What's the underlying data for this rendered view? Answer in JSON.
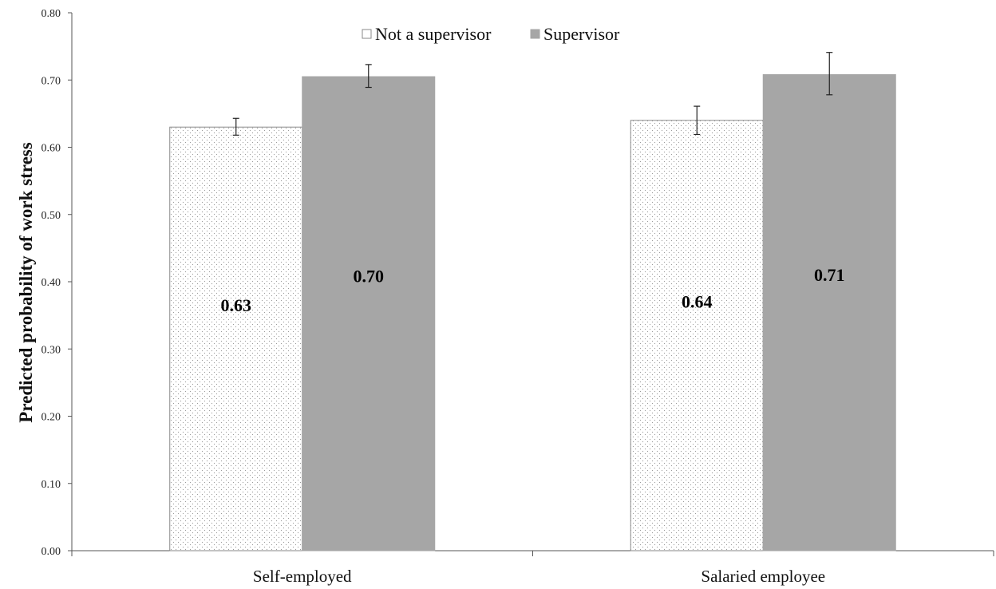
{
  "chart_data": {
    "type": "bar",
    "title": "",
    "xlabel": "",
    "ylabel": "Predicted probability of work stress",
    "categories": [
      "Self-employed",
      "Salaried employee"
    ],
    "series": [
      {
        "name": "Not a supervisor",
        "values": [
          0.63,
          0.64
        ],
        "error_low": [
          0.618,
          0.619
        ],
        "error_high": [
          0.643,
          0.661
        ],
        "data_labels": [
          "0.63",
          "0.64"
        ],
        "fill": "dotted-white",
        "color": "#ffffff"
      },
      {
        "name": "Supervisor",
        "values": [
          0.705,
          0.708
        ],
        "error_low": [
          0.689,
          0.678
        ],
        "error_high": [
          0.723,
          0.741
        ],
        "data_labels": [
          "0.70",
          "0.71"
        ],
        "fill": "solid",
        "color": "#a6a6a6"
      }
    ],
    "ylim": [
      0,
      0.8
    ],
    "yticks": [
      "0.00",
      "0.10",
      "0.20",
      "0.30",
      "0.40",
      "0.50",
      "0.60",
      "0.70",
      "0.80"
    ],
    "grid": false,
    "legend_position": "top-center"
  }
}
